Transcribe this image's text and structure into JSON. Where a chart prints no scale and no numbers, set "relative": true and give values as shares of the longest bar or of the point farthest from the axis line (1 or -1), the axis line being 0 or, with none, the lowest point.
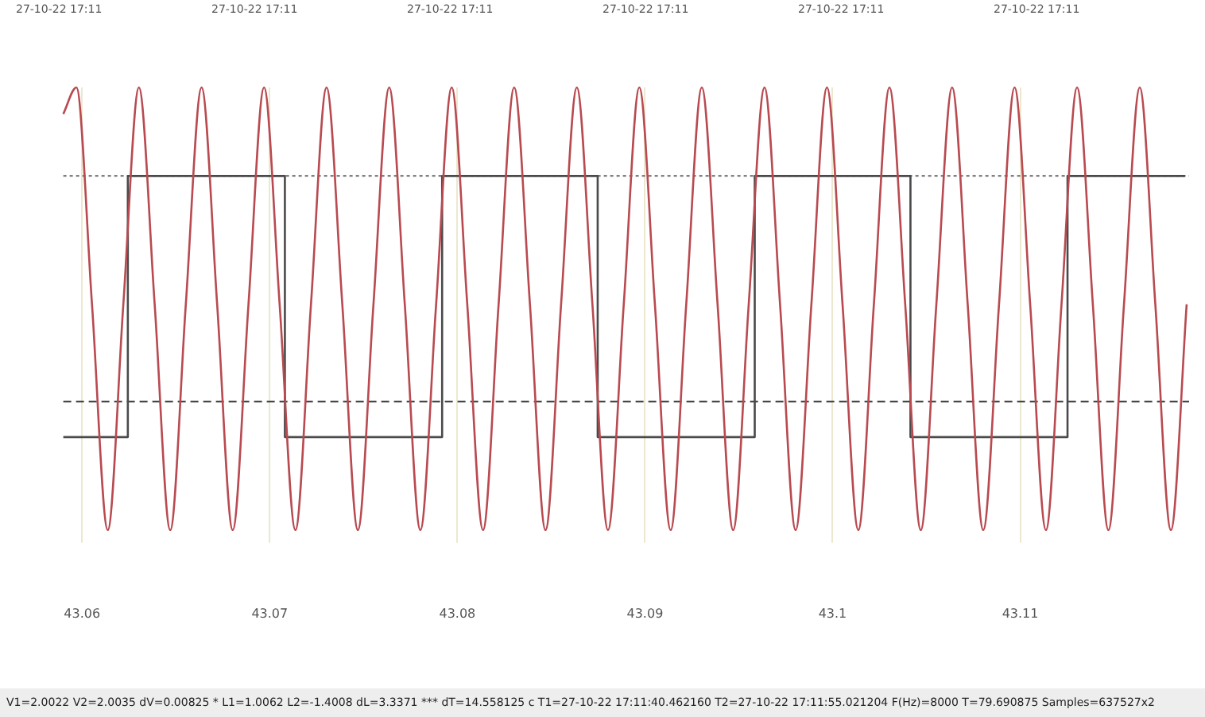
{
  "chart_data": {
    "type": "line",
    "relative": true,
    "xlim": [
      43.059,
      43.119
    ],
    "xticks": [
      {
        "value": 43.06,
        "label": "43.06"
      },
      {
        "value": 43.07,
        "label": "43.07"
      },
      {
        "value": 43.08,
        "label": "43.08"
      },
      {
        "value": 43.09,
        "label": "43.09"
      },
      {
        "value": 43.1,
        "label": "43.1"
      },
      {
        "value": 43.11,
        "label": "43.11"
      }
    ],
    "grid": "x",
    "legend": false,
    "marker": "none",
    "series": [
      {
        "color": "#b84a50",
        "x": [
          43.059,
          43.0597,
          43.06053,
          43.06137,
          43.0622,
          43.06303,
          43.06387,
          43.0647,
          43.06553,
          43.06637,
          43.0672,
          43.06803,
          43.06887,
          43.0697,
          43.07053,
          43.07137,
          43.0722,
          43.07303,
          43.07387,
          43.0747,
          43.07553,
          43.07637,
          43.0772,
          43.07803,
          43.07887,
          43.0797,
          43.08053,
          43.08137,
          43.0822,
          43.08303,
          43.08387,
          43.0847,
          43.08553,
          43.08637,
          43.0872,
          43.08803,
          43.08887,
          43.0897,
          43.09053,
          43.09137,
          43.0922,
          43.09303,
          43.09387,
          43.0947,
          43.09553,
          43.09637,
          43.0972,
          43.09803,
          43.09887,
          43.0997,
          43.10053,
          43.10137,
          43.1022,
          43.10303,
          43.10387,
          43.1047,
          43.10553,
          43.10637,
          43.1072,
          43.10803,
          43.10887,
          43.1097,
          43.11053,
          43.11137,
          43.1122,
          43.11303,
          43.11387,
          43.1147,
          43.11553,
          43.11637,
          43.1172,
          43.11803,
          43.11887
        ],
        "values": [
          0.94,
          1,
          0.51,
          0,
          0.51,
          1,
          0.51,
          0,
          0.51,
          1,
          0.51,
          0,
          0.51,
          1,
          0.51,
          0,
          0.51,
          1,
          0.51,
          0,
          0.51,
          1,
          0.51,
          0,
          0.51,
          1,
          0.51,
          0,
          0.51,
          1,
          0.51,
          0,
          0.51,
          1,
          0.51,
          0,
          0.51,
          1,
          0.51,
          0,
          0.51,
          1,
          0.51,
          0,
          0.51,
          1,
          0.51,
          0,
          0.51,
          1,
          0.51,
          0,
          0.51,
          1,
          0.51,
          0,
          0.51,
          1,
          0.51,
          0,
          0.51,
          1,
          0.51,
          0,
          0.51,
          1,
          0.51,
          0,
          0.51,
          1,
          0.51,
          0,
          0.51
        ]
      },
      {
        "type": "step",
        "color": "#4a4a4a",
        "x": [
          43.059,
          43.06244,
          43.07081,
          43.07919,
          43.08748,
          43.09585,
          43.10415,
          43.11252,
          43.11878
        ],
        "values": [
          0.21,
          0.8,
          0.21,
          0.8,
          0.21,
          0.8,
          0.21,
          0.8,
          0.8
        ]
      }
    ],
    "ref_lines": [
      {
        "axis": "y",
        "value": 0.8,
        "color": "#666666",
        "line_style": "dotted"
      },
      {
        "axis": "y",
        "value": 0.29,
        "color": "#333333",
        "line_style": "dashed"
      }
    ],
    "annotations": [
      "27-10-22 17:11",
      "27-10-22 17:11",
      "27-10-22 17:11",
      "27-10-22 17:11",
      "27-10-22 17:11",
      "27-10-22 17:11",
      "V1=2.0022  V2=2.0035  dV=0.00825 * L1=1.0062 L2=-1.4008 dL=3.3371 *** dT=14.558125 c  T1=27-10-22 17:11:40.462160  T2=27-10-22 17:11:55.021204  F(Hz)=8000 T=79.690875 Samples=637527x2"
    ]
  }
}
